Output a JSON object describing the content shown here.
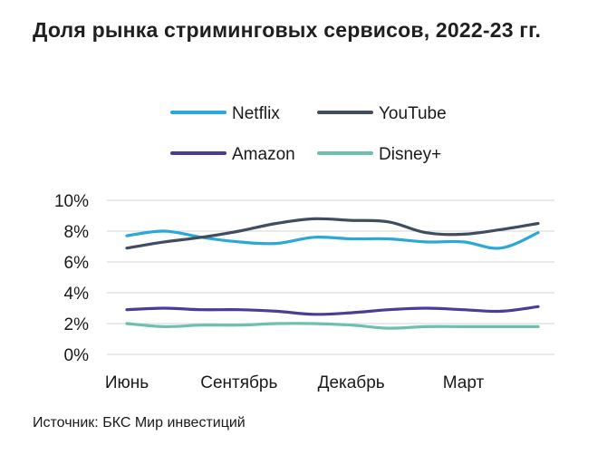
{
  "chart_data": {
    "type": "line",
    "title": "Доля рынка стриминговых сервисов, 2022-23 гг.",
    "x_tick_labels": [
      "Июнь",
      "Сентябрь",
      "Декабрь",
      "Март"
    ],
    "x_tick_positions": [
      0,
      3,
      6,
      9
    ],
    "y_ticks": [
      0,
      2,
      4,
      6,
      8,
      10
    ],
    "y_tick_labels": [
      "0%",
      "2%",
      "4%",
      "6%",
      "8%",
      "10%"
    ],
    "ylim": [
      0,
      10
    ],
    "grid": true,
    "legend_position": "top",
    "series": [
      {
        "name": "Netflix",
        "color": "#2aa8d8",
        "values": [
          7.7,
          8.0,
          7.6,
          7.3,
          7.2,
          7.6,
          7.5,
          7.5,
          7.3,
          7.3,
          6.9,
          7.9
        ]
      },
      {
        "name": "YouTube",
        "color": "#3f4d5f",
        "values": [
          6.9,
          7.3,
          7.6,
          8.0,
          8.5,
          8.8,
          8.7,
          8.6,
          7.9,
          7.8,
          8.1,
          8.5
        ]
      },
      {
        "name": "Amazon",
        "color": "#4b3c9a",
        "values": [
          2.9,
          3.0,
          2.9,
          2.9,
          2.8,
          2.6,
          2.7,
          2.9,
          3.0,
          2.9,
          2.8,
          3.1
        ]
      },
      {
        "name": "Disney+",
        "color": "#6ec0ae",
        "values": [
          2.0,
          1.8,
          1.9,
          1.9,
          2.0,
          2.0,
          1.9,
          1.7,
          1.8,
          1.8,
          1.8,
          1.8
        ]
      }
    ],
    "grid_color": "#d4d4d4"
  },
  "source": "Источник: БКС Мир инвестиций"
}
